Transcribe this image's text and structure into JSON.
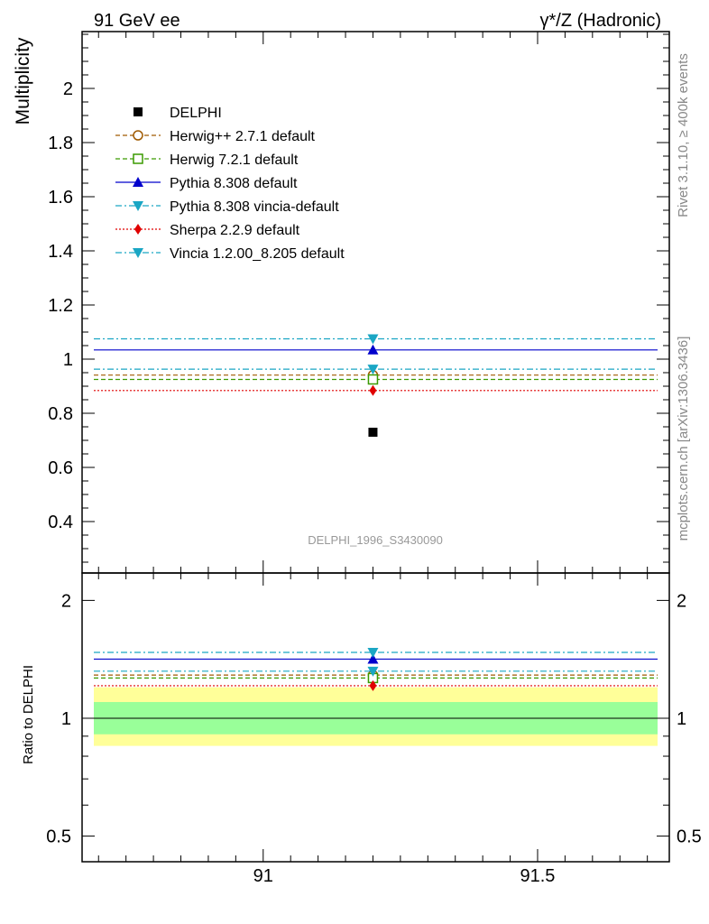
{
  "header": {
    "left": "91 GeV ee",
    "right": "γ*/Z (Hadronic)"
  },
  "side": {
    "rivet": "Rivet 3.1.10, ≥ 400k events",
    "mcplots": "mcplots.cern.ch [arXiv:1306.3436]"
  },
  "chart_data": [
    {
      "type": "scatter",
      "panel": "main",
      "ylabel": "Multiplicity",
      "xlim": [
        90.67,
        91.74
      ],
      "ylim": [
        0.21,
        2.21
      ],
      "x_ticks": [
        "91",
        "91.5"
      ],
      "y_ticks": [
        "0.4",
        "0.6",
        "0.8",
        "1",
        "1.2",
        "1.4",
        "1.6",
        "1.8",
        "2"
      ],
      "watermark": "DELPHI_1996_S3430090",
      "legend_position": "top-left",
      "x_center": 91.2,
      "data": {
        "name": "DELPHI",
        "x": 91.2,
        "y": 0.73,
        "color": "#000000"
      },
      "series": [
        {
          "name": "Herwig++ 2.7.1 default",
          "y": 0.941,
          "color": "#a05a00",
          "line": "dashed",
          "marker": "circle-open"
        },
        {
          "name": "Herwig 7.2.1 default",
          "y": 0.925,
          "color": "#3a9a00",
          "line": "dashed",
          "marker": "square-open"
        },
        {
          "name": "Pythia 8.308 default",
          "y": 1.034,
          "color": "#0000cc",
          "line": "solid",
          "marker": "triangle-up"
        },
        {
          "name": "Pythia 8.308 vincia-default",
          "y": 0.963,
          "color": "#1aa6c4",
          "line": "dashdot",
          "marker": "triangle-down"
        },
        {
          "name": "Sherpa 2.2.9 default",
          "y": 0.884,
          "color": "#e00000",
          "line": "dotted",
          "marker": "diamond"
        },
        {
          "name": "Vincia 1.2.00_8.205 default",
          "y": 1.075,
          "color": "#1aa6c4",
          "line": "dashdot",
          "marker": "triangle-down"
        }
      ]
    },
    {
      "type": "scatter",
      "panel": "ratio",
      "ylabel": "Ratio to DELPHI",
      "scale": "log",
      "ylim": [
        0.43,
        2.35
      ],
      "y_ticks": [
        "0.5",
        "1",
        "2"
      ],
      "bands": [
        {
          "name": "2-sigma",
          "low": 0.85,
          "high": 1.2,
          "color": "#ffff99"
        },
        {
          "name": "1-sigma",
          "low": 0.91,
          "high": 1.1,
          "color": "#99ff99"
        }
      ],
      "series": [
        {
          "name": "Herwig++ 2.7.1 default",
          "y": 1.289
        },
        {
          "name": "Herwig 7.2.1 default",
          "y": 1.267
        },
        {
          "name": "Pythia 8.308 default",
          "y": 1.416
        },
        {
          "name": "Pythia 8.308 vincia-default",
          "y": 1.319
        },
        {
          "name": "Sherpa 2.2.9 default",
          "y": 1.211
        },
        {
          "name": "Vincia 1.2.00_8.205 default",
          "y": 1.473
        }
      ]
    }
  ]
}
